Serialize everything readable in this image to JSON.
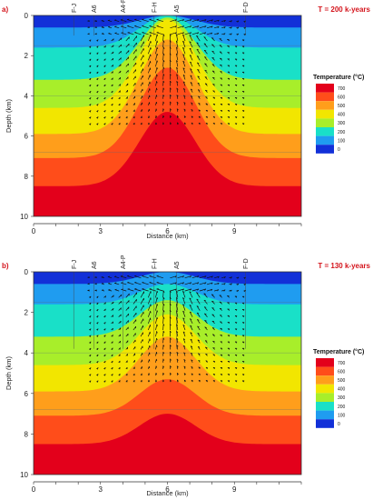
{
  "chart_data": [
    {
      "type": "heatmap",
      "panel_label": "a)",
      "time_label": "T = 200 k-years",
      "xlabel": "Distance (km)",
      "ylabel": "Depth (km)",
      "x_ticks": [
        "0",
        "3",
        "6",
        "9"
      ],
      "y_ticks": [
        "0",
        "2",
        "4",
        "6",
        "8",
        "10"
      ],
      "xlim": [
        0,
        12
      ],
      "ylim": [
        10,
        0
      ],
      "well_labels": [
        {
          "name": "F-J",
          "x": 1.8
        },
        {
          "name": "A6",
          "x": 2.7
        },
        {
          "name": "A4-P",
          "x": 4.0
        },
        {
          "name": "F-H",
          "x": 5.4
        },
        {
          "name": "A5",
          "x": 6.4
        },
        {
          "name": "F-D",
          "x": 9.5
        }
      ],
      "legend": {
        "title": "Temperature (°C)",
        "levels": [
          "700",
          "600",
          "500",
          "400",
          "300",
          "200",
          "100",
          "0"
        ],
        "colors": [
          "#e3001b",
          "#ff4d1a",
          "#ff9e1b",
          "#f2e600",
          "#a8ee2a",
          "#19e0c8",
          "#1f9cf0",
          "#1230d8"
        ]
      },
      "isotherms": {
        "x_center": 6.0,
        "levels": [
          0,
          100,
          200,
          300,
          400,
          500,
          600,
          700
        ],
        "far_depth_km": [
          0.0,
          0.6,
          1.6,
          3.2,
          4.6,
          5.9,
          7.1,
          8.5
        ],
        "center_depth_km": [
          0.0,
          0.0,
          0.0,
          0.1,
          0.2,
          1.2,
          2.6,
          4.8
        ]
      },
      "flow_zone": {
        "x_min": 2.5,
        "x_max": 9.5,
        "z_max": 5.5
      }
    },
    {
      "type": "heatmap",
      "panel_label": "b)",
      "time_label": "T = 130 k-years",
      "xlabel": "Distance (km)",
      "ylabel": "Depth (km)",
      "x_ticks": [
        "0",
        "3",
        "6",
        "9"
      ],
      "y_ticks": [
        "0",
        "2",
        "4",
        "6",
        "8",
        "10"
      ],
      "xlim": [
        0,
        12
      ],
      "ylim": [
        10,
        0
      ],
      "well_labels": [
        {
          "name": "F-J",
          "x": 1.8
        },
        {
          "name": "A6",
          "x": 2.7
        },
        {
          "name": "A4-P",
          "x": 4.0
        },
        {
          "name": "F-H",
          "x": 5.4
        },
        {
          "name": "A5",
          "x": 6.4
        },
        {
          "name": "F-D",
          "x": 9.5
        }
      ],
      "legend": {
        "title": "Temperature (°C)",
        "levels": [
          "700",
          "600",
          "500",
          "400",
          "300",
          "200",
          "100",
          "0"
        ],
        "colors": [
          "#e3001b",
          "#ff4d1a",
          "#ff9e1b",
          "#f2e600",
          "#a8ee2a",
          "#19e0c8",
          "#1f9cf0",
          "#1230d8"
        ]
      },
      "isotherms": {
        "x_center": 6.0,
        "levels": [
          0,
          100,
          200,
          300,
          400,
          500,
          600,
          700
        ],
        "far_depth_km": [
          0.0,
          0.6,
          1.6,
          3.2,
          4.6,
          5.9,
          7.1,
          8.5
        ],
        "center_depth_km": [
          0.0,
          0.0,
          0.6,
          1.4,
          2.1,
          3.2,
          5.3,
          7.0
        ]
      },
      "flow_zone": {
        "x_min": 2.5,
        "x_max": 9.5,
        "z_max": 5.5
      }
    }
  ]
}
